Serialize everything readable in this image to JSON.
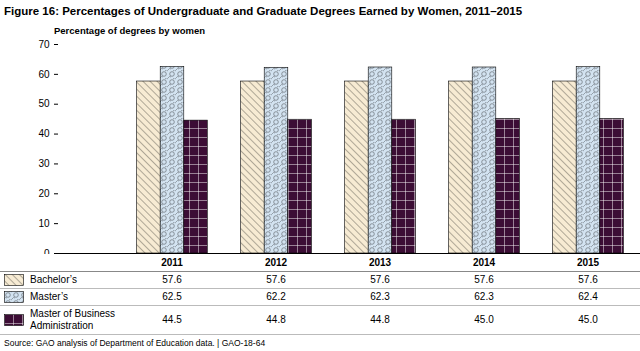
{
  "chart_data": {
    "type": "bar",
    "title": "Figure 16: Percentages of Undergraduate and Graduate Degrees Earned by Women, 2011–2015",
    "y_label": "Percentage of degrees by women",
    "categories": [
      "2011",
      "2012",
      "2013",
      "2014",
      "2015"
    ],
    "series": [
      {
        "name": "Bachelor’s",
        "color": "#f7ebd3",
        "values": [
          57.6,
          57.6,
          57.6,
          57.6,
          57.6
        ],
        "value_labels": [
          "57.6",
          "57.6",
          "57.6",
          "57.6",
          "57.6"
        ]
      },
      {
        "name": "Master’s",
        "color": "#d3e3f1",
        "values": [
          62.5,
          62.2,
          62.3,
          62.3,
          62.4
        ],
        "value_labels": [
          "62.5",
          "62.2",
          "62.3",
          "62.3",
          "62.4"
        ]
      },
      {
        "name": "Master of Business Administration",
        "color": "#3c0d35",
        "values": [
          44.5,
          44.8,
          44.8,
          45.0,
          45.0
        ],
        "value_labels": [
          "44.5",
          "44.8",
          "44.8",
          "45.0",
          "45.0"
        ]
      }
    ],
    "ylim": [
      0,
      70
    ],
    "yticks": [
      0,
      10,
      20,
      30,
      40,
      50,
      60,
      70
    ],
    "grid": false,
    "source": "Source: GAO analysis of Department of Education data.  |  GAO-18-64"
  }
}
